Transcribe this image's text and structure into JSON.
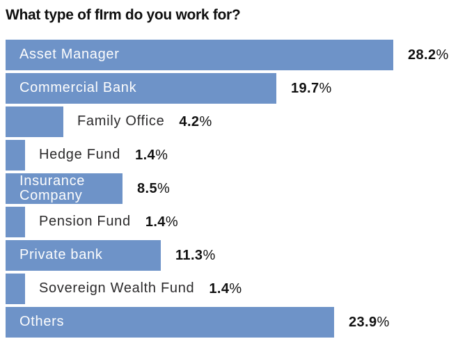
{
  "title": "What type of fIrm do you work for?",
  "colors": {
    "background": "#ffffff",
    "bar": "#6e93c8",
    "bar_label_inside": "#fdfdfd",
    "bar_label_outside": "#2b2a2b",
    "value_label": "#111111",
    "title": "#0f0f0f"
  },
  "chart_data": {
    "type": "bar",
    "orientation": "horizontal",
    "title": "What type of fIrm do you work for?",
    "categories": [
      "Asset Manager",
      "Commercial Bank",
      "Family Office",
      "Hedge Fund",
      "Insurance Company",
      "Pension Fund",
      "Private bank",
      "Sovereign Wealth Fund",
      "Others"
    ],
    "values": [
      28.2,
      19.7,
      4.2,
      1.4,
      8.5,
      1.4,
      11.3,
      1.4,
      23.9
    ],
    "value_labels": [
      "28.2%",
      "19.7%",
      "4.2%",
      "1.4%",
      "8.5%",
      "1.4%",
      "11.3%",
      "1.4%",
      "23.9%"
    ],
    "labels_inside_bar": [
      true,
      true,
      false,
      false,
      true,
      false,
      true,
      false,
      true
    ],
    "xlabel": "",
    "ylabel": "",
    "xlim": [
      0,
      28.2
    ],
    "grid": false,
    "legend": false,
    "bar_color": "#6e93c8",
    "unit": "%"
  }
}
